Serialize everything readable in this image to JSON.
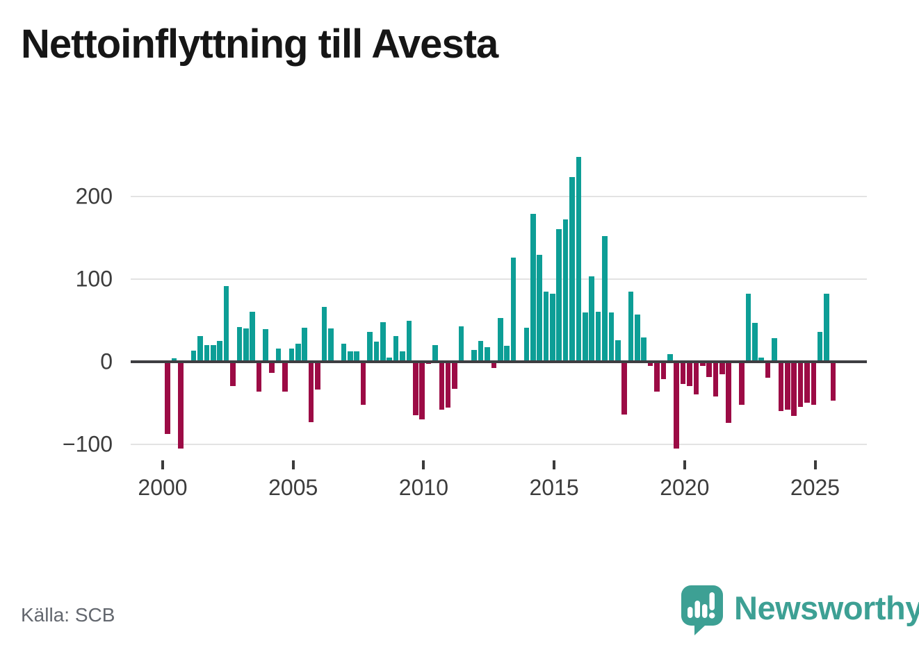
{
  "title": "Nettoinflyttning till Avesta",
  "footer": {
    "source": "Källa: SCB",
    "brand": "Newsworthy"
  },
  "chart_data": {
    "type": "bar",
    "title": "Nettoinflyttning till Avesta",
    "frequency": "quarterly",
    "grid": true,
    "ylim": [
      -120,
      260
    ],
    "colors": {
      "positive": "#0d9e96",
      "negative": "#9c0b45"
    },
    "y_ticks": [
      {
        "label": "200",
        "value": 200
      },
      {
        "label": "100",
        "value": 100
      },
      {
        "label": "0",
        "value": 0
      },
      {
        "label": "−100",
        "value": -100
      }
    ],
    "x_ticks": [
      {
        "label": "2000",
        "year": 2000
      },
      {
        "label": "2005",
        "year": 2005
      },
      {
        "label": "2010",
        "year": 2010
      },
      {
        "label": "2015",
        "year": 2015
      },
      {
        "label": "2020",
        "year": 2020
      },
      {
        "label": "2025",
        "year": 2025
      }
    ],
    "quarters": [
      "2000Q1",
      "2000Q2",
      "2000Q3",
      "2000Q4",
      "2001Q1",
      "2001Q2",
      "2001Q3",
      "2001Q4",
      "2002Q1",
      "2002Q2",
      "2002Q3",
      "2002Q4",
      "2003Q1",
      "2003Q2",
      "2003Q3",
      "2003Q4",
      "2004Q1",
      "2004Q2",
      "2004Q3",
      "2004Q4",
      "2005Q1",
      "2005Q2",
      "2005Q3",
      "2005Q4",
      "2006Q1",
      "2006Q2",
      "2006Q3",
      "2006Q4",
      "2007Q1",
      "2007Q2",
      "2007Q3",
      "2007Q4",
      "2008Q1",
      "2008Q2",
      "2008Q3",
      "2008Q4",
      "2009Q1",
      "2009Q2",
      "2009Q3",
      "2009Q4",
      "2010Q1",
      "2010Q2",
      "2010Q3",
      "2010Q4",
      "2011Q1",
      "2011Q2",
      "2011Q3",
      "2011Q4",
      "2012Q1",
      "2012Q2",
      "2012Q3",
      "2012Q4",
      "2013Q1",
      "2013Q2",
      "2013Q3",
      "2013Q4",
      "2014Q1",
      "2014Q2",
      "2014Q3",
      "2014Q4",
      "2015Q1",
      "2015Q2",
      "2015Q3",
      "2015Q4",
      "2016Q1",
      "2016Q2",
      "2016Q3",
      "2016Q4",
      "2017Q1",
      "2017Q2",
      "2017Q3",
      "2017Q4",
      "2018Q1",
      "2018Q2",
      "2018Q3",
      "2018Q4",
      "2019Q1",
      "2019Q2",
      "2019Q3",
      "2019Q4",
      "2020Q1",
      "2020Q2",
      "2020Q3",
      "2020Q4",
      "2021Q1",
      "2021Q2",
      "2021Q3",
      "2021Q4",
      "2022Q1",
      "2022Q2",
      "2022Q3",
      "2022Q4",
      "2023Q1",
      "2023Q2",
      "2023Q3",
      "2023Q4",
      "2024Q1",
      "2024Q2",
      "2024Q3",
      "2024Q4",
      "2025Q1",
      "2025Q2",
      "2025Q3"
    ],
    "values": [
      -88,
      4,
      -105,
      0,
      13,
      31,
      20,
      20,
      25,
      91,
      -30,
      42,
      40,
      60,
      -36,
      39,
      -14,
      16,
      -36,
      16,
      22,
      41,
      -73,
      -34,
      66,
      40,
      0,
      22,
      12,
      12,
      -52,
      36,
      24,
      48,
      5,
      31,
      12,
      49,
      -65,
      -70,
      -3,
      20,
      -58,
      -56,
      -33,
      43,
      0,
      14,
      25,
      17,
      -8,
      53,
      19,
      126,
      0,
      41,
      179,
      129,
      85,
      82,
      160,
      172,
      223,
      248,
      59,
      103,
      60,
      152,
      59,
      26,
      -64,
      85,
      57,
      29,
      -5,
      -36,
      -21,
      9,
      -105,
      -27,
      -30,
      -40,
      -5,
      -19,
      -42,
      -15,
      -74,
      0,
      -52,
      82,
      47,
      5,
      -20,
      28,
      -60,
      -58,
      -66,
      -55,
      -50,
      -52,
      36,
      82,
      -47
    ]
  }
}
